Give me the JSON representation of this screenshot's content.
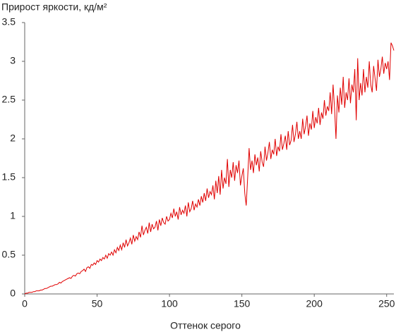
{
  "chart_data": {
    "type": "line",
    "title": "Прирост яркости, кд/м²",
    "x_label": "Оттенок серого",
    "xlim": [
      0,
      255
    ],
    "xticks": [
      0,
      50,
      100,
      150,
      200,
      250
    ],
    "ylim": [
      0,
      3.5
    ],
    "yticks": [
      0,
      0.5,
      1,
      1.5,
      2,
      2.5,
      3,
      3.5
    ],
    "grid": false,
    "series": [
      {
        "color": "#e00000",
        "x": [
          0,
          1,
          2,
          3,
          4,
          5,
          6,
          7,
          8,
          9,
          10,
          11,
          12,
          13,
          14,
          15,
          16,
          17,
          18,
          19,
          20,
          21,
          22,
          23,
          24,
          25,
          26,
          27,
          28,
          29,
          30,
          31,
          32,
          33,
          34,
          35,
          36,
          37,
          38,
          39,
          40,
          41,
          42,
          43,
          44,
          45,
          46,
          47,
          48,
          49,
          50,
          51,
          52,
          53,
          54,
          55,
          56,
          57,
          58,
          59,
          60,
          61,
          62,
          63,
          64,
          65,
          66,
          67,
          68,
          69,
          70,
          71,
          72,
          73,
          74,
          75,
          76,
          77,
          78,
          79,
          80,
          81,
          82,
          83,
          84,
          85,
          86,
          87,
          88,
          89,
          90,
          91,
          92,
          93,
          94,
          95,
          96,
          97,
          98,
          99,
          100,
          101,
          102,
          103,
          104,
          105,
          106,
          107,
          108,
          109,
          110,
          111,
          112,
          113,
          114,
          115,
          116,
          117,
          118,
          119,
          120,
          121,
          122,
          123,
          124,
          125,
          126,
          127,
          128,
          129,
          130,
          131,
          132,
          133,
          134,
          135,
          136,
          137,
          138,
          139,
          140,
          141,
          142,
          143,
          144,
          145,
          146,
          147,
          148,
          149,
          150,
          151,
          152,
          153,
          154,
          155,
          156,
          157,
          158,
          159,
          160,
          161,
          162,
          163,
          164,
          165,
          166,
          167,
          168,
          169,
          170,
          171,
          172,
          173,
          174,
          175,
          176,
          177,
          178,
          179,
          180,
          181,
          182,
          183,
          184,
          185,
          186,
          187,
          188,
          189,
          190,
          191,
          192,
          193,
          194,
          195,
          196,
          197,
          198,
          199,
          200,
          201,
          202,
          203,
          204,
          205,
          206,
          207,
          208,
          209,
          210,
          211,
          212,
          213,
          214,
          215,
          216,
          217,
          218,
          219,
          220,
          221,
          222,
          223,
          224,
          225,
          226,
          227,
          228,
          229,
          230,
          231,
          232,
          233,
          234,
          235,
          236,
          237,
          238,
          239,
          240,
          241,
          242,
          243,
          244,
          245,
          246,
          247,
          248,
          249,
          250,
          251,
          252,
          253,
          254,
          255
        ],
        "values": [
          0,
          0.01,
          0.01,
          0.02,
          0.02,
          0.02,
          0.03,
          0.03,
          0.04,
          0.04,
          0.04,
          0.05,
          0.05,
          0.06,
          0.07,
          0.07,
          0.08,
          0.09,
          0.1,
          0.1,
          0.11,
          0.12,
          0.12,
          0.13,
          0.15,
          0.14,
          0.16,
          0.17,
          0.18,
          0.19,
          0.2,
          0.21,
          0.2,
          0.23,
          0.24,
          0.23,
          0.26,
          0.27,
          0.26,
          0.29,
          0.3,
          0.32,
          0.29,
          0.34,
          0.35,
          0.33,
          0.38,
          0.37,
          0.4,
          0.38,
          0.43,
          0.41,
          0.45,
          0.43,
          0.47,
          0.45,
          0.5,
          0.46,
          0.52,
          0.5,
          0.54,
          0.5,
          0.57,
          0.53,
          0.6,
          0.56,
          0.63,
          0.57,
          0.66,
          0.6,
          0.7,
          0.62,
          0.66,
          0.72,
          0.64,
          0.76,
          0.68,
          0.74,
          0.7,
          0.8,
          0.73,
          0.88,
          0.76,
          0.82,
          0.86,
          0.78,
          0.92,
          0.8,
          0.9,
          0.84,
          0.86,
          0.94,
          0.82,
          0.96,
          0.88,
          0.98,
          0.92,
          0.9,
          1.0,
          0.94,
          0.96,
          1.04,
          0.98,
          1.1,
          1.0,
          1.06,
          0.96,
          1.12,
          1.02,
          1.08,
          1.04,
          1.14,
          1.0,
          1.18,
          1.06,
          1.1,
          1.2,
          1.08,
          1.16,
          1.12,
          1.22,
          1.14,
          1.26,
          1.18,
          1.3,
          1.2,
          1.36,
          1.24,
          1.32,
          1.28,
          1.4,
          1.22,
          1.46,
          1.3,
          1.52,
          1.28,
          1.6,
          1.36,
          1.5,
          1.42,
          1.74,
          1.38,
          1.6,
          1.5,
          1.7,
          1.46,
          1.66,
          1.56,
          1.72,
          1.4,
          1.52,
          1.62,
          1.3,
          1.14,
          1.5,
          1.88,
          1.6,
          1.72,
          1.56,
          1.8,
          1.66,
          1.76,
          1.58,
          1.84,
          1.7,
          1.64,
          1.9,
          1.72,
          1.82,
          1.96,
          1.74,
          1.86,
          1.8,
          2.0,
          1.78,
          1.9,
          1.84,
          2.06,
          1.86,
          1.94,
          2.04,
          1.86,
          2.1,
          1.92,
          1.98,
          2.18,
          1.96,
          2.06,
          2.22,
          2.0,
          2.1,
          2.0,
          2.26,
          2.06,
          2.16,
          2.3,
          2.04,
          2.2,
          2.12,
          2.36,
          2.14,
          2.28,
          2.2,
          2.4,
          2.18,
          2.34,
          2.26,
          2.5,
          2.3,
          2.42,
          2.36,
          2.6,
          2.32,
          2.7,
          2.4,
          2.0,
          2.56,
          2.34,
          2.66,
          2.44,
          2.8,
          2.4,
          2.6,
          2.5,
          2.78,
          2.46,
          2.7,
          2.6,
          2.9,
          2.24,
          3.04,
          2.5,
          2.72,
          2.56,
          2.9,
          2.6,
          2.8,
          2.66,
          3.0,
          2.7,
          2.6,
          2.94,
          2.78,
          2.62,
          3.02,
          2.8,
          2.9,
          3.06,
          2.84,
          2.98,
          2.9,
          3.0,
          2.76,
          3.24,
          3.2,
          3.14
        ]
      }
    ]
  }
}
